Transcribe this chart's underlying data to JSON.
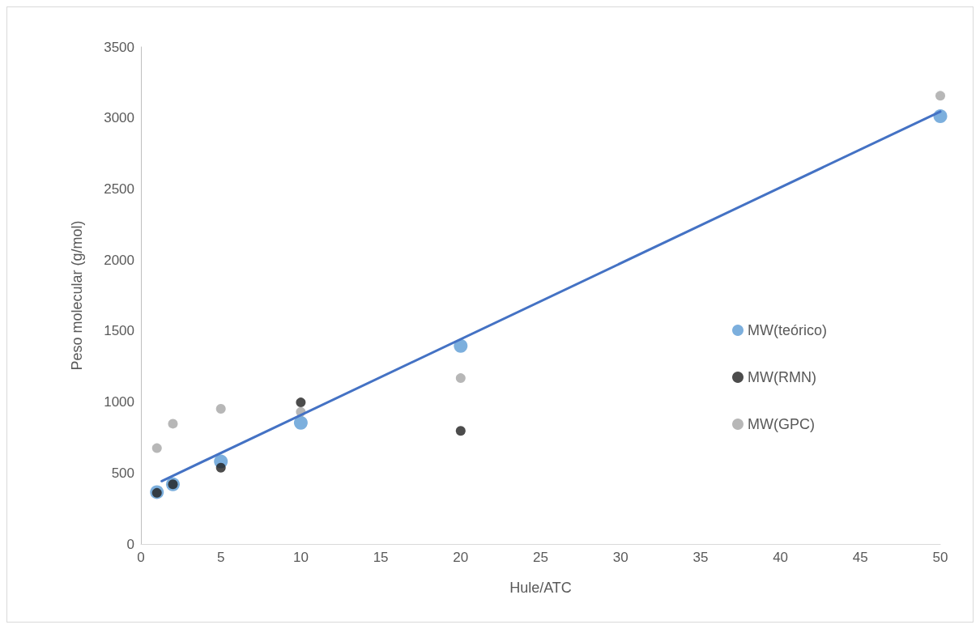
{
  "chart_data": {
    "type": "scatter",
    "xlabel": "Hule/ATC",
    "ylabel": "Peso molecular (g/mol)",
    "xlim": [
      0,
      50
    ],
    "xticks": [
      0,
      5,
      10,
      15,
      20,
      25,
      30,
      35,
      40,
      45,
      50
    ],
    "ylim": [
      0,
      3500
    ],
    "yticks": [
      0,
      500,
      1000,
      1500,
      2000,
      2500,
      3000,
      3500
    ],
    "grid": false,
    "legend": "right",
    "marker": "circle",
    "series": [
      {
        "name": "MW(teórico)",
        "color": "#5b9bd5",
        "x": [
          1,
          2,
          5,
          10,
          20,
          50
        ],
        "values": [
          365,
          420,
          581,
          853,
          1395,
          3012
        ]
      },
      {
        "name": "MW(RMN)",
        "color": "#1f1f1f",
        "x": [
          1,
          2,
          5,
          10,
          20
        ],
        "values": [
          360,
          420,
          537,
          997,
          797
        ]
      },
      {
        "name": "MW(GPC)",
        "color": "#a5a5a5",
        "x": [
          1,
          2,
          5,
          10,
          20,
          50
        ],
        "values": [
          675,
          847,
          952,
          930,
          1168,
          3156
        ]
      },
      {
        "type": "line",
        "marker": "none",
        "color": "#4472c4",
        "x": [
          1.3,
          50
        ],
        "values": [
          443,
          3045
        ]
      }
    ]
  }
}
